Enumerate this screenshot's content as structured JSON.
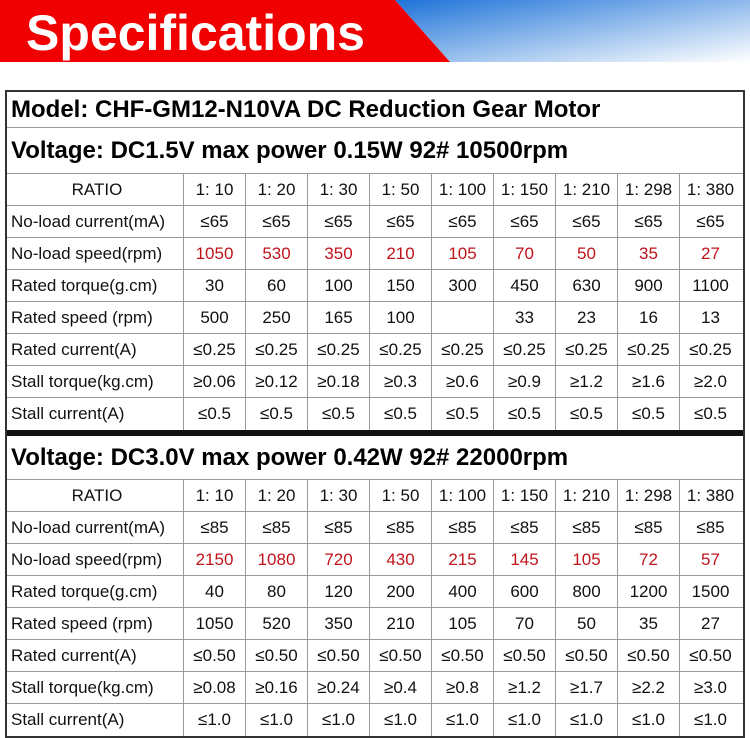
{
  "header": {
    "title": "Specifications"
  },
  "model": "Model: CHF-GM12-N10VA  DC Reduction Gear Motor",
  "sections": [
    {
      "voltage": "Voltage:  DC1.5V   max power 0.15W   92#  10500rpm",
      "rows": [
        {
          "label": "RATIO",
          "cells": [
            "1: 10",
            "1: 20",
            "1: 30",
            "1: 50",
            "1: 100",
            "1: 150",
            "1: 210",
            "1: 298",
            "1: 380"
          ]
        },
        {
          "label": "No-load current(mA)",
          "cells": [
            "≤65",
            "≤65",
            "≤65",
            "≤65",
            "≤65",
            "≤65",
            "≤65",
            "≤65",
            "≤65"
          ]
        },
        {
          "label": "No-load speed(rpm)",
          "cells": [
            "1050",
            "530",
            "350",
            "210",
            "105",
            "70",
            "50",
            "35",
            "27"
          ]
        },
        {
          "label": "Rated torque(g.cm)",
          "cells": [
            "30",
            "60",
            "100",
            "150",
            "300",
            "450",
            "630",
            "900",
            "1100"
          ]
        },
        {
          "label": "Rated speed (rpm)",
          "cells": [
            "500",
            "250",
            "165",
            "100",
            null,
            "33",
            "23",
            "16",
            "13"
          ]
        },
        {
          "label": "Rated current(A)",
          "cells": [
            "≤0.25",
            "≤0.25",
            "≤0.25",
            "≤0.25",
            "≤0.25",
            "≤0.25",
            "≤0.25",
            "≤0.25",
            "≤0.25"
          ]
        },
        {
          "label": "Stall torque(kg.cm)",
          "cells": [
            "≥0.06",
            "≥0.12",
            "≥0.18",
            "≥0.3",
            "≥0.6",
            "≥0.9",
            "≥1.2",
            "≥1.6",
            "≥2.0"
          ]
        },
        {
          "label": "Stall current(A)",
          "cells": [
            "≤0.5",
            "≤0.5",
            "≤0.5",
            "≤0.5",
            "≤0.5",
            "≤0.5",
            "≤0.5",
            "≤0.5",
            "≤0.5"
          ]
        }
      ]
    },
    {
      "voltage": "Voltage:  DC3.0V    max power 0.42W    92#   22000rpm",
      "rows": [
        {
          "label": "RATIO",
          "cells": [
            "1: 10",
            "1: 20",
            "1: 30",
            "1: 50",
            "1: 100",
            "1: 150",
            "1: 210",
            "1: 298",
            "1: 380"
          ]
        },
        {
          "label": "No-load current(mA)",
          "cells": [
            "≤85",
            "≤85",
            "≤85",
            "≤85",
            "≤85",
            "≤85",
            "≤85",
            "≤85",
            "≤85"
          ]
        },
        {
          "label": "No-load speed(rpm)",
          "cells": [
            "2150",
            "1080",
            "720",
            "430",
            "215",
            "145",
            "105",
            "72",
            "57"
          ]
        },
        {
          "label": "Rated torque(g.cm)",
          "cells": [
            "40",
            "80",
            "120",
            "200",
            "400",
            "600",
            "800",
            "1200",
            "1500"
          ]
        },
        {
          "label": "Rated speed (rpm)",
          "cells": [
            "1050",
            "520",
            "350",
            "210",
            "105",
            "70",
            "50",
            "35",
            "27"
          ]
        },
        {
          "label": "Rated current(A)",
          "cells": [
            "≤0.50",
            "≤0.50",
            "≤0.50",
            "≤0.50",
            "≤0.50",
            "≤0.50",
            "≤0.50",
            "≤0.50",
            "≤0.50"
          ]
        },
        {
          "label": "Stall torque(kg.cm)",
          "cells": [
            "≥0.08",
            "≥0.16",
            "≥0.24",
            "≥0.4",
            "≥0.8",
            "≥1.2",
            "≥1.7",
            "≥2.2",
            "≥3.0"
          ]
        },
        {
          "label": "Stall current(A)",
          "cells": [
            "≤1.0",
            "≤1.0",
            "≤1.0",
            "≤1.0",
            "≤1.0",
            "≤1.0",
            "≤1.0",
            "≤1.0",
            "≤1.0"
          ]
        }
      ]
    }
  ]
}
